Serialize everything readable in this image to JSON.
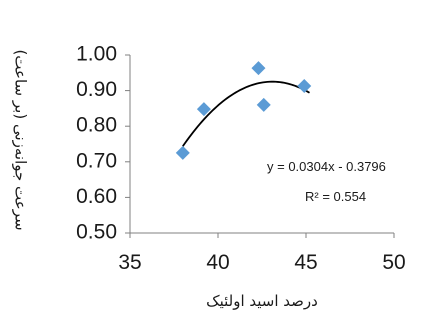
{
  "chart_data": {
    "type": "scatter",
    "title": "",
    "xlabel": "درصد اسید اولئیک",
    "ylabel": "سرعت جوانه‌زنی (بر ساعت)",
    "xlim": [
      35,
      50
    ],
    "ylim": [
      0.5,
      1.0
    ],
    "x_ticks": [
      "35",
      "40",
      "45",
      "50"
    ],
    "y_ticks": [
      "0.50",
      "0.60",
      "0.70",
      "0.80",
      "0.90",
      "1.00"
    ],
    "grid": false,
    "legend": "none",
    "series": [
      {
        "marker": "diamond",
        "color": "#5B9BD5",
        "points": [
          {
            "x": 38.0,
            "y": 0.725
          },
          {
            "x": 39.2,
            "y": 0.848
          },
          {
            "x": 42.3,
            "y": 0.963
          },
          {
            "x": 42.6,
            "y": 0.86
          },
          {
            "x": 44.9,
            "y": 0.913
          }
        ]
      }
    ],
    "trendline": {
      "type": "polynomial",
      "color": "#000000",
      "x_range": [
        38.0,
        45.2
      ]
    },
    "annotations": {
      "equation": "y = 0.0304x - 0.3796",
      "r_squared": "R² = 0.554"
    }
  }
}
